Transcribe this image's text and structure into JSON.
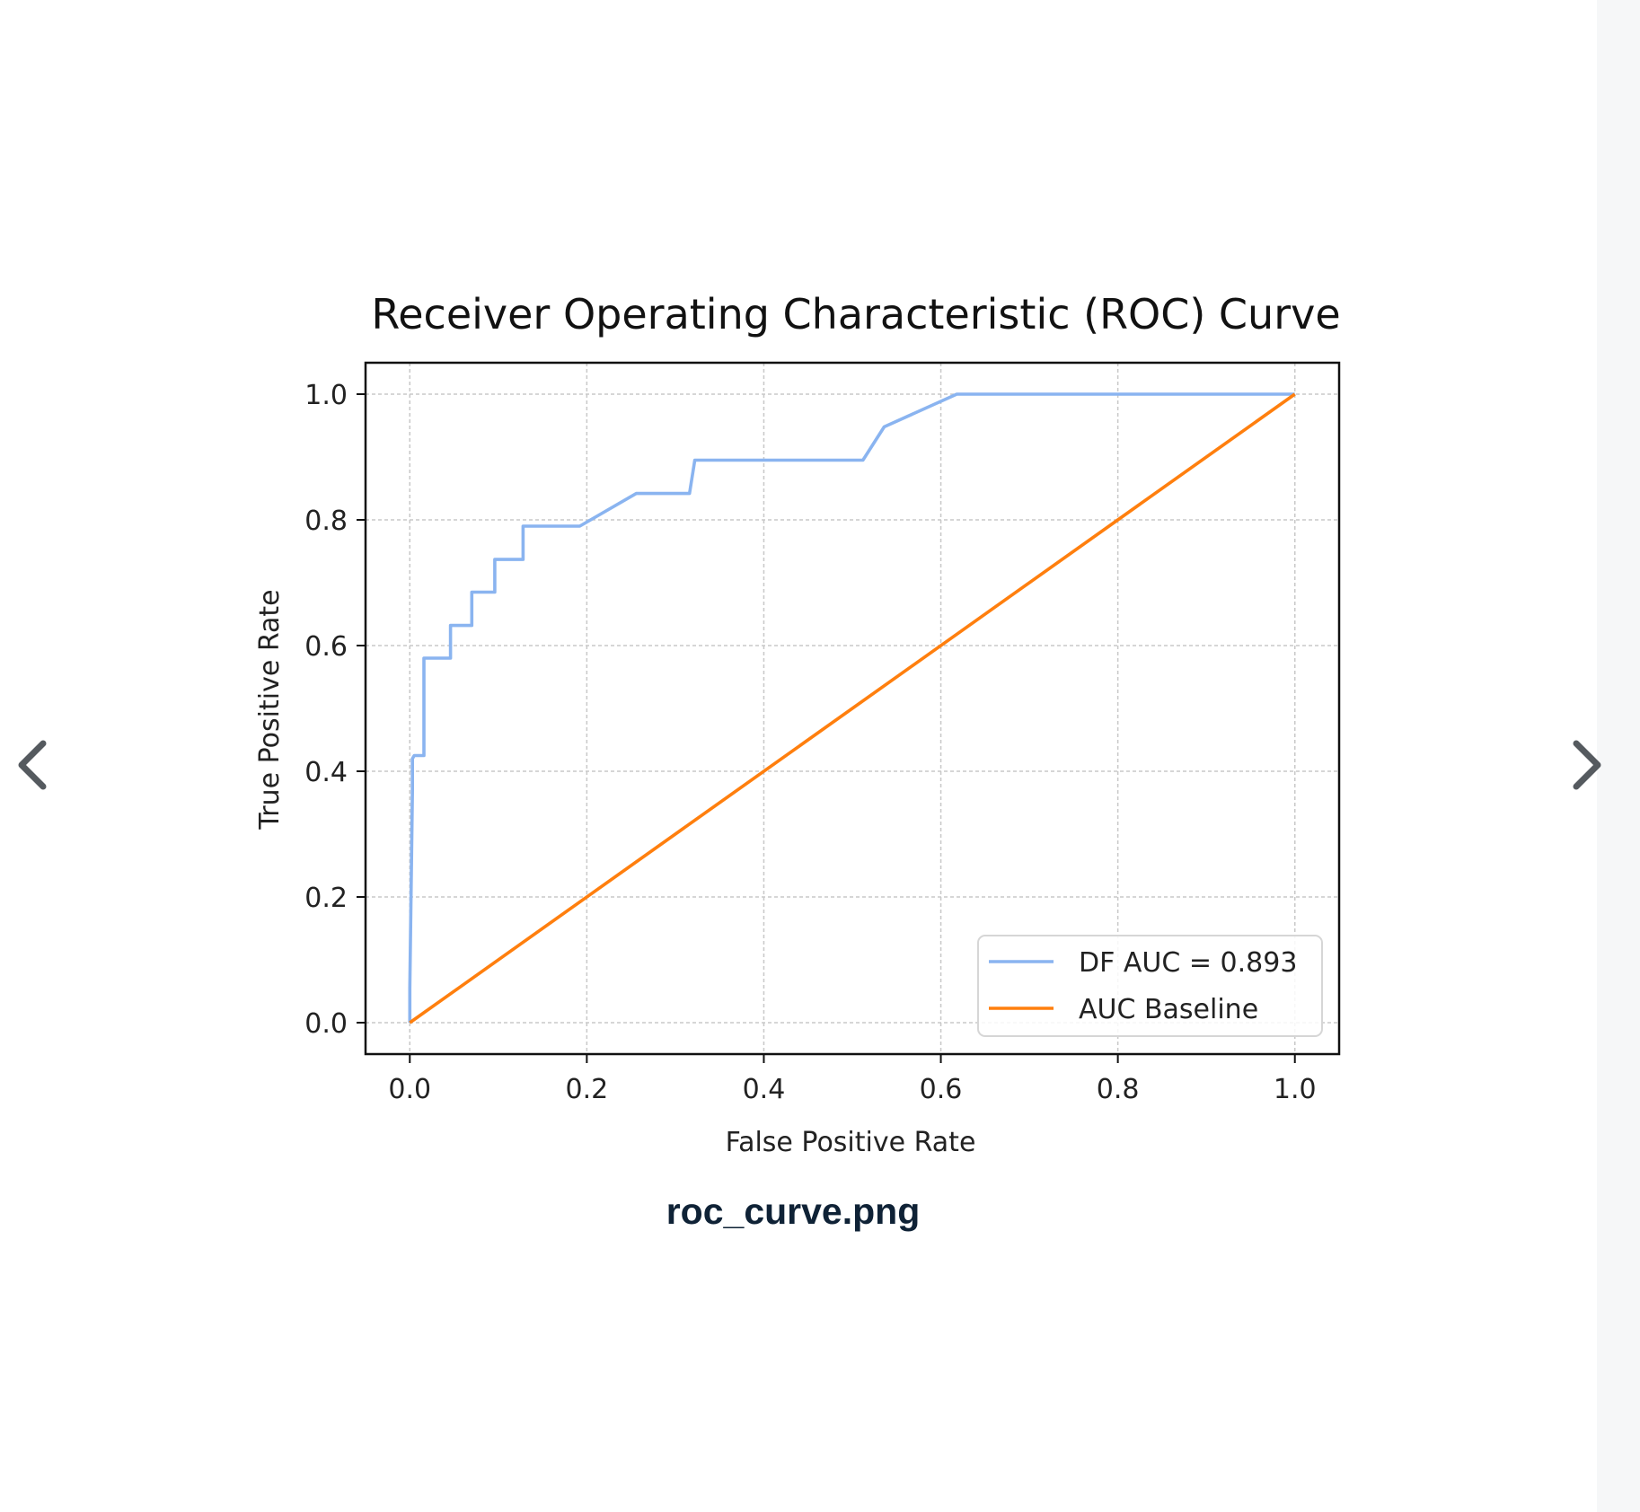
{
  "viewer": {
    "caption": "roc_curve.png",
    "prev_icon": "chevron-left-icon",
    "next_icon": "chevron-right-icon"
  },
  "chart_data": {
    "type": "line",
    "title": "Receiver Operating Characteristic (ROC) Curve",
    "xlabel": "False Positive Rate",
    "ylabel": "True Positive Rate",
    "xlim": [
      -0.05,
      1.05
    ],
    "ylim": [
      -0.05,
      1.05
    ],
    "xticks": [
      "0.0",
      "0.2",
      "0.4",
      "0.6",
      "0.8",
      "1.0"
    ],
    "yticks": [
      "0.0",
      "0.2",
      "0.4",
      "0.6",
      "0.8",
      "1.0"
    ],
    "grid": true,
    "legend_position": "lower-right",
    "series": [
      {
        "name": "DF AUC = 0.893",
        "color": "#8ab4f0",
        "x": [
          0.0,
          0.0,
          0.003,
          0.003,
          0.005,
          0.016,
          0.016,
          0.046,
          0.046,
          0.07,
          0.07,
          0.096,
          0.096,
          0.128,
          0.128,
          0.192,
          0.256,
          0.316,
          0.322,
          0.512,
          0.536,
          0.618,
          1.0
        ],
        "y": [
          0.0,
          0.055,
          0.37,
          0.42,
          0.425,
          0.425,
          0.58,
          0.58,
          0.632,
          0.632,
          0.685,
          0.685,
          0.737,
          0.737,
          0.79,
          0.79,
          0.842,
          0.842,
          0.895,
          0.895,
          0.948,
          1.0,
          1.0
        ]
      },
      {
        "name": "AUC Baseline",
        "color": "#ff7f0e",
        "x": [
          0.0,
          1.0
        ],
        "y": [
          0.0,
          1.0
        ]
      }
    ]
  }
}
